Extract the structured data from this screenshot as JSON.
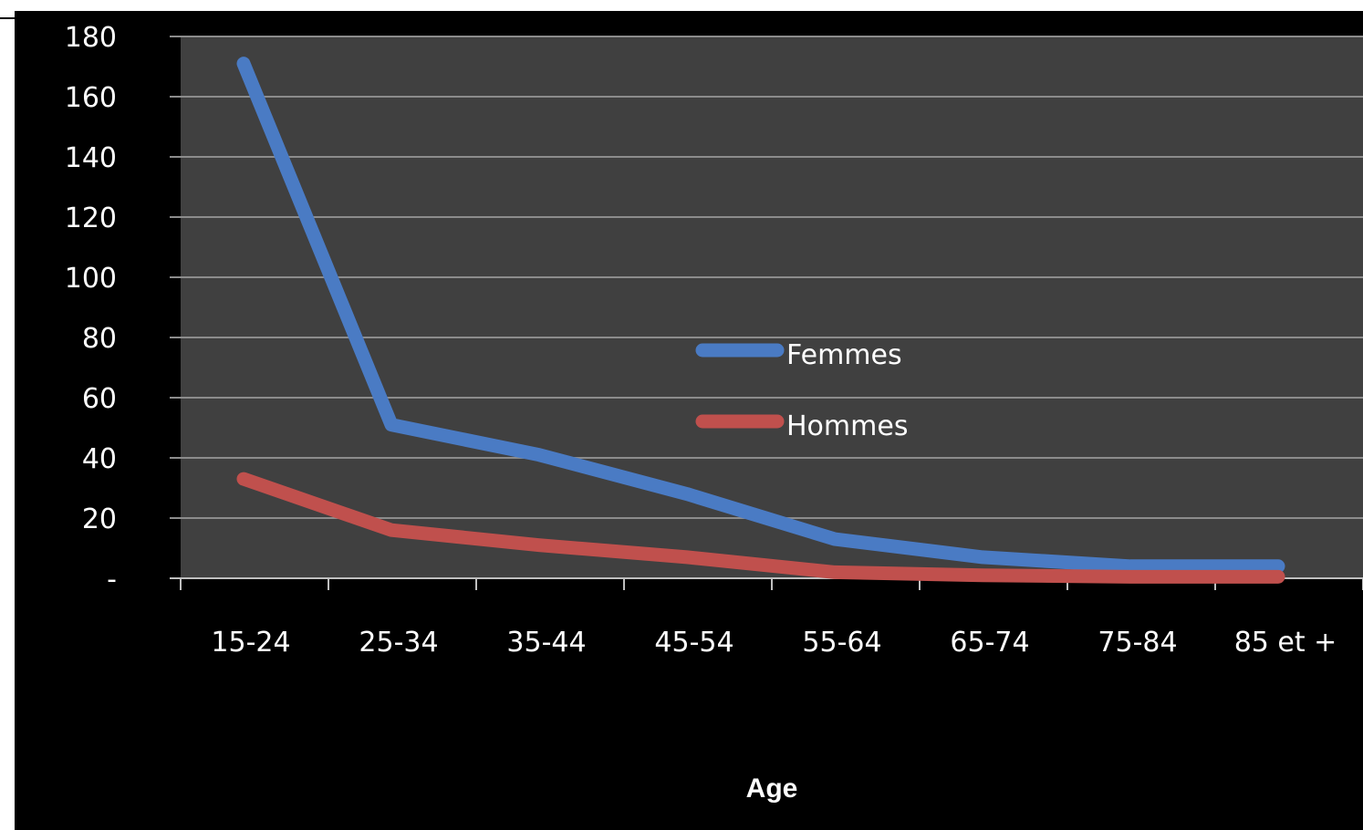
{
  "chart_data": {
    "type": "line",
    "categories": [
      "15-24",
      "25-34",
      "35-44",
      "45-54",
      "55-64",
      "65-74",
      "75-84",
      "85 et +"
    ],
    "series": [
      {
        "name": "Femmes",
        "color": "#4a7bc4",
        "values": [
          171,
          51,
          41,
          28,
          13,
          7,
          4,
          4
        ]
      },
      {
        "name": "Hommes",
        "color": "#c0504d",
        "values": [
          33,
          16,
          11,
          7,
          2,
          1,
          0.5,
          0.5
        ]
      }
    ],
    "xlabel": "Age",
    "ylabel": "",
    "ylim": [
      0,
      180
    ],
    "yticks": [
      0,
      20,
      40,
      60,
      80,
      100,
      120,
      140,
      160,
      180
    ],
    "ytick_labels": [
      "-",
      "20",
      "40",
      "60",
      "80",
      "100",
      "120",
      "140",
      "160",
      "180"
    ],
    "grid": true,
    "legend_position": "center",
    "plot_background": "#404040",
    "frame_background": "#000000"
  }
}
